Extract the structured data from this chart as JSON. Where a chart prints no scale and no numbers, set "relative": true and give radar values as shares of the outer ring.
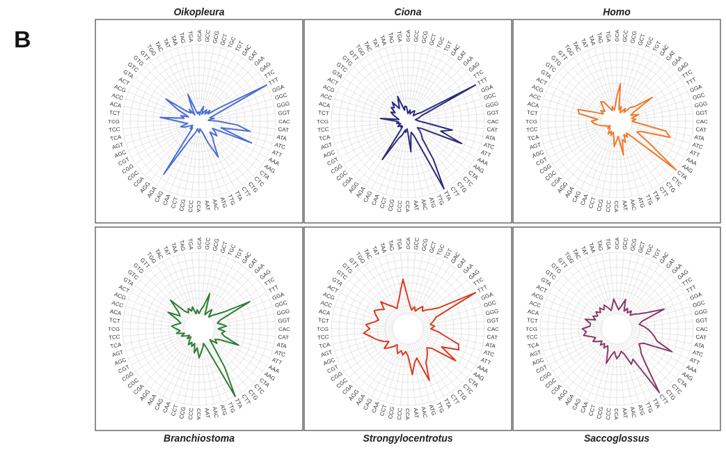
{
  "chart_data": [
    {
      "type": "radar",
      "title": "Oikopleura",
      "annotations": [
        "B"
      ],
      "relative": true,
      "grid": true,
      "categories": [
        "GCA",
        "GCC",
        "GCG",
        "GCT",
        "TGC",
        "TGT",
        "GAC",
        "GAT",
        "GAA",
        "GAG",
        "TTC",
        "TTT",
        "GGA",
        "GGC",
        "GGG",
        "GGT",
        "CAC",
        "CAT",
        "ATA",
        "ATC",
        "ATT",
        "AAA",
        "AAG",
        "CTA",
        "CTC",
        "CTG",
        "CTT",
        "TTA",
        "TTG",
        "ATG",
        "AAC",
        "AAT",
        "CCA",
        "CCC",
        "CCG",
        "CCT",
        "CAA",
        "CAG",
        "AGA",
        "AGG",
        "CGA",
        "CGC",
        "CGG",
        "CGT",
        "AGC",
        "AGT",
        "TCA",
        "TCC",
        "TCG",
        "TCT",
        "ACA",
        "ACC",
        "ACG",
        "ACT",
        "GTA",
        "GTC",
        "GTG",
        "GTT",
        "TGG",
        "TAC",
        "TAT",
        "TAA",
        "TAG",
        "TGA"
      ],
      "series": [
        {
          "color": "#4a6fd0",
          "values": [
            0.12,
            0.08,
            0.15,
            0.2,
            0.1,
            0.14,
            0.18,
            0.12,
            0.2,
            0.15,
            0.3,
            1,
            0.25,
            0.15,
            0.2,
            0.12,
            0.25,
            0.5,
            0.68,
            0.3,
            0.74,
            0.2,
            0.25,
            0.3,
            0.2,
            0.28,
            0.35,
            0.53,
            0.3,
            0.15,
            0.12,
            0.1,
            0.15,
            0.12,
            0.1,
            0.15,
            0.2,
            0.3,
            0.83,
            0.2,
            0.12,
            0.15,
            0.1,
            0.12,
            0.2,
            0.25,
            0.15,
            0.2,
            0.28,
            0.51,
            0.2,
            0.25,
            0.15,
            0.3,
            0.52,
            0.2,
            0.15,
            0.2,
            0.1,
            0.2,
            0.38,
            0.15,
            0.1,
            0.12
          ]
        }
      ]
    },
    {
      "type": "radar",
      "title": "Ciona",
      "relative": true,
      "grid": true,
      "categories": [
        "GCA",
        "GCC",
        "GCG",
        "GCT",
        "TGC",
        "TGT",
        "GAC",
        "GAT",
        "GAA",
        "GAG",
        "TTC",
        "TTT",
        "GGA",
        "GGC",
        "GGG",
        "GGT",
        "CAC",
        "CAT",
        "ATA",
        "ATC",
        "ATT",
        "AAA",
        "AAG",
        "CTA",
        "CTC",
        "CTG",
        "CTT",
        "TTA",
        "TTG",
        "ATG",
        "AAC",
        "AAT",
        "CCA",
        "CCC",
        "CCG",
        "CCT",
        "CAA",
        "CAG",
        "AGA",
        "AGG",
        "CGA",
        "CGC",
        "CGG",
        "CGT",
        "AGC",
        "AGT",
        "TCA",
        "TCC",
        "TCG",
        "TCT",
        "ACA",
        "ACC",
        "ACG",
        "ACT",
        "GTA",
        "GTC",
        "GTG",
        "GTT",
        "TGG",
        "TAC",
        "TAT",
        "TAA",
        "TAG",
        "TGA"
      ],
      "series": [
        {
          "color": "#2b2a7d",
          "values": [
            0.1,
            0.12,
            0.15,
            0.1,
            0.12,
            0.15,
            0.16,
            0.12,
            0.1,
            0.15,
            0.2,
            1,
            0.2,
            0.15,
            0.1,
            0.12,
            0.15,
            0.25,
            0.59,
            0.45,
            0.76,
            0.2,
            0.15,
            0.2,
            0.25,
            0.3,
            0.6,
            1,
            0.2,
            0.15,
            0.2,
            0.4,
            0.15,
            0.1,
            0.15,
            0.12,
            0.2,
            0.25,
            0.6,
            0.15,
            0.1,
            0.12,
            0.1,
            0.15,
            0.12,
            0.1,
            0.15,
            0.12,
            0.15,
            0.36,
            0.12,
            0.15,
            0.2,
            0.25,
            0.2,
            0.28,
            0.25,
            0.32,
            0.2,
            0.25,
            0.35,
            0.15,
            0.2,
            0.19
          ]
        }
      ]
    },
    {
      "type": "radar",
      "title": "Homo",
      "relative": true,
      "grid": true,
      "categories": [
        "GCA",
        "GCC",
        "GCG",
        "GCT",
        "TGC",
        "TGT",
        "GAC",
        "GAT",
        "GAA",
        "GAG",
        "TTC",
        "TTT",
        "GGA",
        "GGC",
        "GGG",
        "GGT",
        "CAC",
        "CAT",
        "ATA",
        "ATC",
        "ATT",
        "AAA",
        "AAG",
        "CTA",
        "CTC",
        "CTG",
        "CTT",
        "TTA",
        "TTG",
        "ATG",
        "AAC",
        "AAT",
        "CCA",
        "CCC",
        "CCG",
        "CCT",
        "CAA",
        "CAG",
        "AGA",
        "AGG",
        "CGA",
        "CGC",
        "CGG",
        "CGT",
        "AGC",
        "AGT",
        "TCA",
        "TCC",
        "TCG",
        "TCT",
        "ACA",
        "ACC",
        "ACG",
        "ACT",
        "GTA",
        "GTC",
        "GTG",
        "GTT",
        "TGG",
        "TAC",
        "TAT",
        "TAA",
        "TAG",
        "TGA"
      ],
      "series": [
        {
          "color": "#f07a2a",
          "values": [
            0.32,
            0.49,
            0.15,
            0.2,
            0.12,
            0.15,
            0.2,
            0.15,
            0.25,
            0.3,
            0.56,
            0.25,
            0.2,
            0.3,
            0.2,
            0.25,
            0.2,
            0.3,
            0.65,
            0.73,
            0.35,
            0.3,
            0.5,
            1,
            0.3,
            0.2,
            0.25,
            0.2,
            0.3,
            0.25,
            0.45,
            0.2,
            0.25,
            0.33,
            0.2,
            0.15,
            0.2,
            0.15,
            0.2,
            0.15,
            0.12,
            0.15,
            0.1,
            0.15,
            0.15,
            0.2,
            0.25,
            0.3,
            0.33,
            0.25,
            0.5,
            0.53,
            0.3,
            0.2,
            0.25,
            0.2,
            0.25,
            0.33,
            0.3,
            0.2,
            0.15,
            0.2,
            0.15,
            0.2
          ]
        }
      ]
    },
    {
      "type": "radar",
      "title": "Branchiostoma",
      "relative": true,
      "grid": true,
      "categories": [
        "GCA",
        "GCC",
        "GCG",
        "GCT",
        "TGC",
        "TGT",
        "GAC",
        "GAT",
        "GAA",
        "GAG",
        "TTC",
        "TTT",
        "GGA",
        "GGC",
        "GGG",
        "GGT",
        "CAC",
        "CAT",
        "ATA",
        "ATC",
        "ATT",
        "AAA",
        "AAG",
        "CTA",
        "CTC",
        "CTG",
        "CTT",
        "TTA",
        "TTG",
        "ATG",
        "AAC",
        "AAT",
        "CCA",
        "CCC",
        "CCG",
        "CCT",
        "CAA",
        "CAG",
        "AGA",
        "AGG",
        "CGA",
        "CGC",
        "CGG",
        "CGT",
        "AGC",
        "AGT",
        "TCA",
        "TCC",
        "TCG",
        "TCT",
        "ACA",
        "ACC",
        "ACG",
        "ACT",
        "GTA",
        "GTC",
        "GTG",
        "GTT",
        "TGG",
        "TAC",
        "TAT",
        "TAA",
        "TAG",
        "TGA"
      ],
      "series": [
        {
          "color": "#2e7d32",
          "values": [
            0.2,
            0.25,
            0.3,
            0.48,
            0.2,
            0.25,
            0.3,
            0.2,
            0.25,
            0.3,
            0.4,
            0.75,
            0.3,
            0.25,
            0.3,
            0.36,
            0.25,
            0.34,
            0.3,
            0.35,
            0.56,
            0.3,
            0.25,
            0.3,
            0.2,
            0.3,
            0.6,
            1,
            0.3,
            0.2,
            0.25,
            0.3,
            0.38,
            0.25,
            0.32,
            0.2,
            0.25,
            0.2,
            0.25,
            0.2,
            0.15,
            0.2,
            0.15,
            0.2,
            0.25,
            0.2,
            0.3,
            0.25,
            0.3,
            0.36,
            0.3,
            0.25,
            0.3,
            0.46,
            0.3,
            0.35,
            0.53,
            0.3,
            0.25,
            0.3,
            0.25,
            0.3,
            0.2,
            0.25
          ]
        }
      ]
    },
    {
      "type": "radar",
      "title": "Strongylocentrotus",
      "relative": true,
      "grid": true,
      "categories": [
        "GCA",
        "GCC",
        "GCG",
        "GCT",
        "TGC",
        "TGT",
        "GAC",
        "GAT",
        "GAA",
        "GAG",
        "TTC",
        "TTT",
        "GGA",
        "GGC",
        "GGG",
        "GGT",
        "CAC",
        "CAT",
        "ATA",
        "ATC",
        "ATT",
        "AAA",
        "AAG",
        "CTA",
        "CTC",
        "CTG",
        "CTT",
        "TTA",
        "TTG",
        "ATG",
        "AAC",
        "AAT",
        "CCA",
        "CCC",
        "CCG",
        "CCT",
        "CAA",
        "CAG",
        "AGA",
        "AGG",
        "CGA",
        "CGC",
        "CGG",
        "CGT",
        "AGC",
        "AGT",
        "TCA",
        "TCC",
        "TCG",
        "TCT",
        "ACA",
        "ACC",
        "ACG",
        "ACT",
        "GTA",
        "GTC",
        "GTG",
        "GTT",
        "TGG",
        "TAC",
        "TAT",
        "TAA",
        "TAG",
        "TGA"
      ],
      "series": [
        {
          "color": "#d83a20",
          "values": [
            0.4,
            0.3,
            0.25,
            0.3,
            0.25,
            0.3,
            0.35,
            0.3,
            0.35,
            0.4,
            0.5,
            1,
            0.4,
            0.35,
            0.3,
            0.35,
            0.3,
            0.4,
            0.5,
            0.69,
            0.72,
            0.5,
            0.75,
            0.4,
            0.35,
            0.4,
            0.45,
            0.5,
            0.73,
            0.4,
            0.45,
            0.6,
            0.35,
            0.3,
            0.35,
            0.3,
            0.35,
            0.3,
            0.25,
            0.3,
            0.35,
            0.4,
            0.3,
            0.35,
            0.4,
            0.45,
            0.5,
            0.58,
            0.5,
            0.55,
            0.45,
            0.4,
            0.45,
            0.5,
            0.45,
            0.4,
            0.5,
            0.4,
            0.35,
            0.3,
            0.35,
            0.4,
            0.5,
            0.65
          ]
        }
      ]
    },
    {
      "type": "radar",
      "title": "Saccoglossus",
      "relative": true,
      "grid": true,
      "categories": [
        "GCA",
        "GCC",
        "GCG",
        "GCT",
        "TGC",
        "TGT",
        "GAC",
        "GAT",
        "GAA",
        "GAG",
        "TTC",
        "TTT",
        "GGA",
        "GGC",
        "GGG",
        "GGT",
        "CAC",
        "CAT",
        "ATA",
        "ATC",
        "ATT",
        "AAA",
        "AAG",
        "CTA",
        "CTC",
        "CTG",
        "CTT",
        "TTA",
        "TTG",
        "ATG",
        "AAC",
        "AAT",
        "CCA",
        "CCC",
        "CCG",
        "CCT",
        "CAA",
        "CAG",
        "AGA",
        "AGG",
        "CGA",
        "CGC",
        "CGG",
        "CGT",
        "AGC",
        "AGT",
        "TCA",
        "TCC",
        "TCG",
        "TCT",
        "ACA",
        "ACC",
        "ACG",
        "ACT",
        "GTA",
        "GTC",
        "GTG",
        "GTT",
        "TGG",
        "TAC",
        "TAT",
        "TAA",
        "TAG",
        "TGA"
      ],
      "series": [
        {
          "color": "#8a3a6a",
          "values": [
            0.3,
            0.25,
            0.3,
            0.4,
            0.25,
            0.3,
            0.25,
            0.3,
            0.25,
            0.3,
            0.35,
            0.45,
            0.67,
            0.35,
            0.3,
            0.35,
            0.4,
            0.45,
            0.5,
            0.55,
            0.78,
            0.4,
            0.35,
            0.4,
            0.45,
            0.6,
            1,
            0.45,
            0.5,
            0.35,
            0.3,
            0.35,
            0.39,
            0.3,
            0.35,
            0.47,
            0.3,
            0.25,
            0.3,
            0.25,
            0.3,
            0.25,
            0.3,
            0.35,
            0.3,
            0.35,
            0.44,
            0.4,
            0.45,
            0.35,
            0.35,
            0.43,
            0.3,
            0.35,
            0.3,
            0.35,
            0.3,
            0.35,
            0.3,
            0.35,
            0.3,
            0.25,
            0.3,
            0.39
          ]
        }
      ]
    }
  ]
}
